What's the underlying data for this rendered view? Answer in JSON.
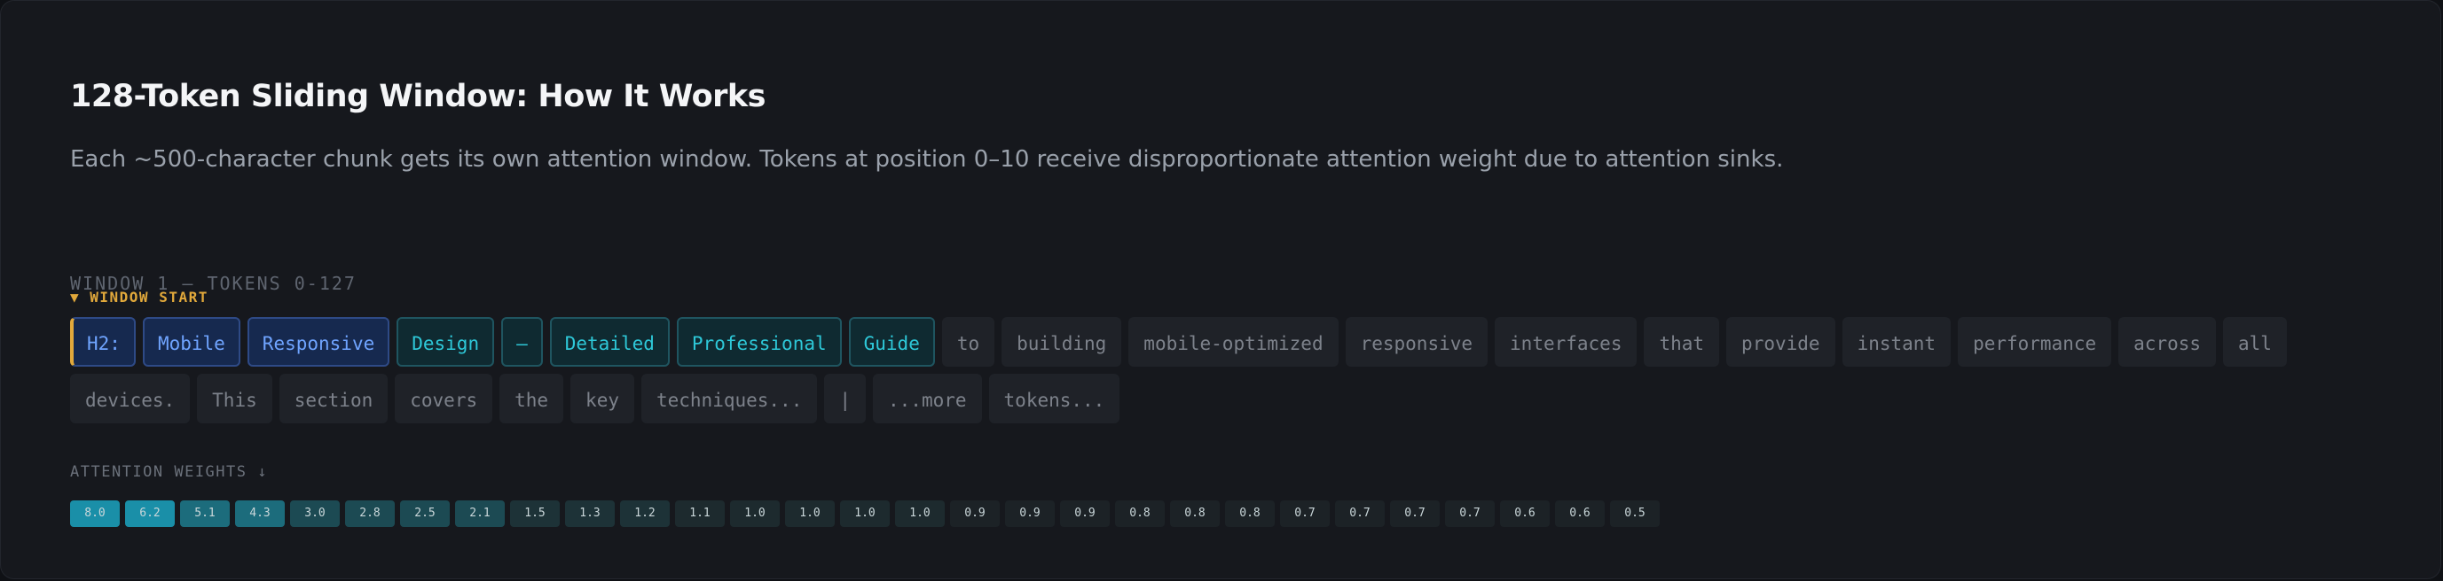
{
  "header": {
    "title": "128-Token Sliding Window: How It Works",
    "description": "Each ~500-character chunk gets its own attention window. Tokens at position 0–10 receive disproportionate attention weight due to attention sinks."
  },
  "window": {
    "label": "WINDOW 1 — TOKENS 0-127",
    "start_label": "▼ WINDOW START",
    "tokens": [
      {
        "text": "H2:",
        "style": "first"
      },
      {
        "text": "Mobile",
        "style": "blue"
      },
      {
        "text": "Responsive",
        "style": "blue"
      },
      {
        "text": "Design",
        "style": "teal"
      },
      {
        "text": "—",
        "style": "teal"
      },
      {
        "text": "Detailed",
        "style": "teal"
      },
      {
        "text": "Professional",
        "style": "teal"
      },
      {
        "text": "Guide",
        "style": "teal"
      },
      {
        "text": "to",
        "style": "plain"
      },
      {
        "text": "building",
        "style": "plain"
      },
      {
        "text": "mobile-optimized",
        "style": "plain"
      },
      {
        "text": "responsive",
        "style": "plain"
      },
      {
        "text": "interfaces",
        "style": "plain"
      },
      {
        "text": "that",
        "style": "plain"
      },
      {
        "text": "provide",
        "style": "plain"
      },
      {
        "text": "instant",
        "style": "plain"
      },
      {
        "text": "performance",
        "style": "plain"
      },
      {
        "text": "across",
        "style": "plain"
      },
      {
        "text": "all",
        "style": "plain"
      },
      {
        "text": "devices.",
        "style": "plain"
      },
      {
        "text": "This",
        "style": "plain"
      },
      {
        "text": "section",
        "style": "plain"
      },
      {
        "text": "covers",
        "style": "plain"
      },
      {
        "text": "the",
        "style": "plain"
      },
      {
        "text": "key",
        "style": "plain"
      },
      {
        "text": "techniques...",
        "style": "plain"
      },
      {
        "text": "|",
        "style": "plain"
      },
      {
        "text": "...more",
        "style": "plain"
      },
      {
        "text": "tokens...",
        "style": "plain"
      }
    ]
  },
  "attention": {
    "label": "ATTENTION WEIGHTS ↓",
    "weights": [
      "8.0",
      "6.2",
      "5.1",
      "4.3",
      "3.0",
      "2.8",
      "2.5",
      "2.1",
      "1.5",
      "1.3",
      "1.2",
      "1.1",
      "1.0",
      "1.0",
      "1.0",
      "1.0",
      "0.9",
      "0.9",
      "0.9",
      "0.8",
      "0.8",
      "0.8",
      "0.7",
      "0.7",
      "0.7",
      "0.7",
      "0.6",
      "0.6",
      "0.5"
    ]
  },
  "colors": {
    "accent_blue": "#6fa4ff",
    "accent_teal": "#2ec8d8",
    "window_start": "#e2a93b",
    "weight_high": "#1a8fa8",
    "weight_low": "#1d2228"
  }
}
